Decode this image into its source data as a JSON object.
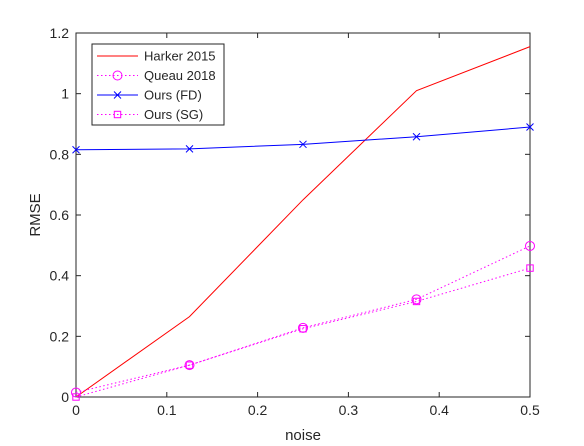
{
  "chart_data": {
    "type": "line",
    "xlabel": "noise",
    "ylabel": "RMSE",
    "xlim": [
      0,
      0.5
    ],
    "ylim": [
      0,
      1.2
    ],
    "xticks": [
      0,
      0.1,
      0.2,
      0.3,
      0.4,
      0.5
    ],
    "xtick_labels": [
      "0",
      "0.1",
      "0.2",
      "0.3",
      "0.4",
      "0.5"
    ],
    "yticks": [
      0,
      0.2,
      0.4,
      0.6,
      0.8,
      1,
      1.2
    ],
    "ytick_labels": [
      "0",
      "0.2",
      "0.4",
      "0.6",
      "0.8",
      "1",
      "1.2"
    ],
    "grid": false,
    "legend_position": "top-left",
    "x": [
      0,
      0.125,
      0.25,
      0.375,
      0.5
    ],
    "series": [
      {
        "name": "Harker 2015",
        "values": [
          0.0,
          0.265,
          0.65,
          1.01,
          1.155
        ],
        "color": "#ff0000",
        "dash": "solid",
        "marker": "none"
      },
      {
        "name": "Queau 2018",
        "values": [
          0.015,
          0.105,
          0.228,
          0.322,
          0.498
        ],
        "color": "#ff00ff",
        "dash": "dotted",
        "marker": "circle"
      },
      {
        "name": "Ours (FD)",
        "values": [
          0.815,
          0.818,
          0.833,
          0.858,
          0.89
        ],
        "color": "#0000ff",
        "dash": "solid",
        "marker": "x"
      },
      {
        "name": "Ours (SG)",
        "values": [
          0.0,
          0.105,
          0.225,
          0.315,
          0.425
        ],
        "color": "#ff00ff",
        "dash": "dotted",
        "marker": "square"
      }
    ]
  }
}
